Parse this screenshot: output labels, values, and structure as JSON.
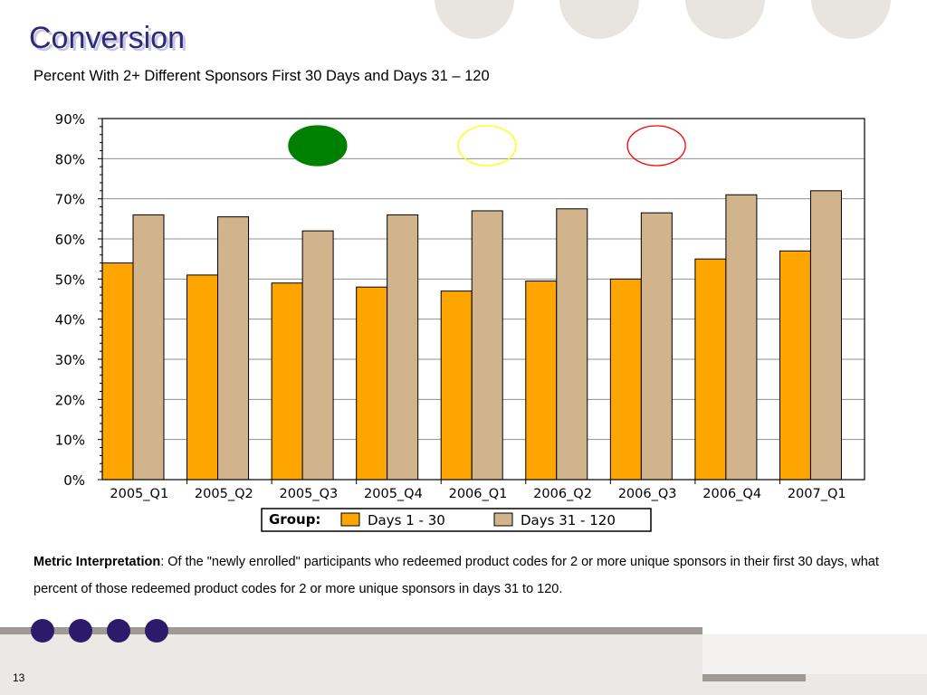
{
  "slide": {
    "title": "Conversion",
    "subtitle": "Percent With 2+ Different Sponsors First 30 Days and Days 31 – 120",
    "interpretation_label": "Metric Interpretation",
    "interpretation_text": ": Of the \"newly enrolled\" participants who redeemed product codes for 2 or more unique sponsors in their first 30 days, what percent of those redeemed product codes for 2 or more unique sponsors in days 31 to 120.",
    "page_number": "13"
  },
  "colors": {
    "title": "#2e2a7a",
    "series1": "#ffa500",
    "series2": "#d2b48c",
    "indicator_green": "#008000",
    "indicator_yellow": "#ffff00",
    "indicator_red": "#ff0000",
    "footer_dots": "#2e1a6b"
  },
  "chart_data": {
    "type": "bar",
    "categories": [
      "2005_Q1",
      "2005_Q2",
      "2005_Q3",
      "2005_Q4",
      "2006_Q1",
      "2006_Q2",
      "2006_Q3",
      "2006_Q4",
      "2007_Q1"
    ],
    "series": [
      {
        "name": "Days 1 - 30",
        "values": [
          54,
          51,
          49,
          48,
          47,
          49.5,
          50,
          55,
          57
        ]
      },
      {
        "name": "Days 31 - 120",
        "values": [
          66,
          65.5,
          62,
          66,
          67,
          67.5,
          66.5,
          71,
          72
        ]
      }
    ],
    "ylim": [
      0,
      90
    ],
    "yticks": [
      "0%",
      "10%",
      "20%",
      "30%",
      "40%",
      "50%",
      "60%",
      "70%",
      "80%",
      "90%"
    ],
    "grid": true,
    "legend_title": "Group:",
    "legend_placement": "bottom-center",
    "indicators": [
      {
        "name": "green-status-indicator",
        "category": "2005_Q3",
        "fill": "green"
      },
      {
        "name": "yellow-status-indicator",
        "category": "2006_Q1",
        "fill": "none",
        "stroke": "yellow"
      },
      {
        "name": "red-status-indicator",
        "category": "2006_Q3",
        "fill": "none",
        "stroke": "red"
      }
    ]
  }
}
